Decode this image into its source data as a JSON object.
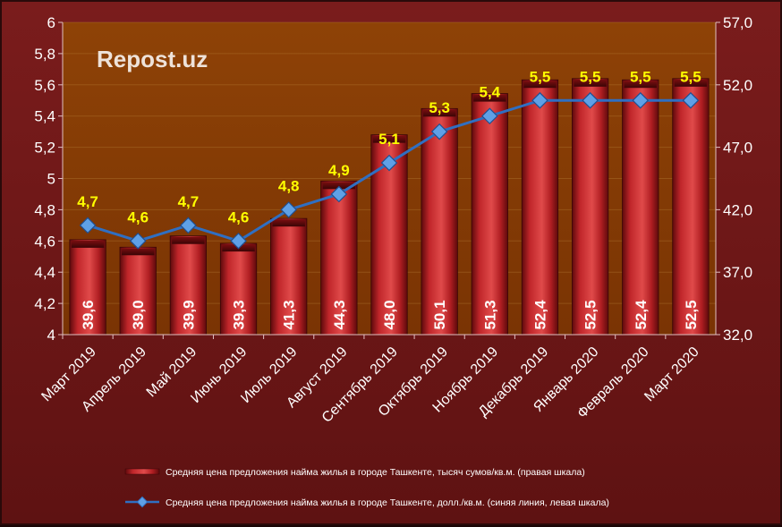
{
  "watermark": "Repost.uz",
  "colors": {
    "plot_bg": "#8a3e06",
    "bar": "#c0262a",
    "bar_dark": "#7a0e10",
    "line": "#2f6fc2",
    "marker": "#5fa0e6",
    "point_label": "#ffff00",
    "text": "#ffffff"
  },
  "chart_data": {
    "type": "bar",
    "categories": [
      "Март 2019",
      "Апрель 2019",
      "Май 2019",
      "Июнь 2019",
      "Июль 2019",
      "Август 2019",
      "Сентябрь 2019",
      "Октябрь 2019",
      "Ноябрь 2019",
      "Декабрь 2019",
      "Январь 2020",
      "Февраль 2020",
      "Март 2020"
    ],
    "series": [
      {
        "name": "Средняя цена предложения найма жилья в городе Ташкенте, тысяч сумов/кв.м. (правая шкала)",
        "type": "bar",
        "axis": "right",
        "values": [
          39.6,
          39.0,
          39.9,
          39.3,
          41.3,
          44.3,
          48.0,
          50.1,
          51.3,
          52.4,
          52.5,
          52.4,
          52.5
        ],
        "labels": [
          "39,6",
          "39,0",
          "39,9",
          "39,3",
          "41,3",
          "44,3",
          "48,0",
          "50,1",
          "51,3",
          "52,4",
          "52,5",
          "52,4",
          "52,5"
        ]
      },
      {
        "name": "Средняя цена предложения найма жилья в городе Ташкенте, долл./кв.м. (синяя линия, левая шкала)",
        "type": "line",
        "axis": "left",
        "values": [
          4.7,
          4.6,
          4.7,
          4.6,
          4.8,
          4.9,
          5.1,
          5.3,
          5.4,
          5.5,
          5.5,
          5.5,
          5.5
        ],
        "labels": [
          "4,7",
          "4,6",
          "4,7",
          "4,6",
          "4,8",
          "4,9",
          "5,1",
          "5,3",
          "5,4",
          "5,5",
          "5,5",
          "5,5",
          "5,5"
        ]
      }
    ],
    "y_left": {
      "min": 4,
      "max": 6,
      "ticks": [
        "4",
        "4,2",
        "4,4",
        "4,6",
        "4,8",
        "5",
        "5,2",
        "5,4",
        "5,6",
        "5,8",
        "6"
      ]
    },
    "y_right": {
      "min": 32,
      "max": 57,
      "ticks": [
        "32,0",
        "37,0",
        "42,0",
        "47,0",
        "52,0",
        "57,0"
      ]
    },
    "legend_position": "bottom"
  }
}
